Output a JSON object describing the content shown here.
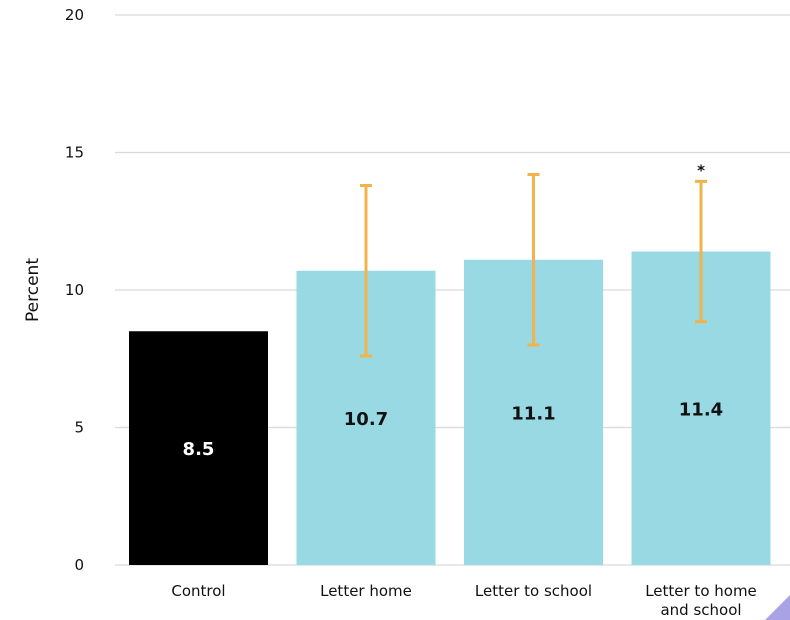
{
  "chart_data": {
    "type": "bar",
    "ylabel": "Percent",
    "ylim": [
      0,
      20
    ],
    "yticks": [
      0,
      5,
      10,
      15,
      20
    ],
    "grid": true,
    "categories": [
      [
        "Control"
      ],
      [
        "Letter home"
      ],
      [
        "Letter to school"
      ],
      [
        "Letter to home",
        "and school"
      ]
    ],
    "values": [
      8.5,
      10.7,
      11.1,
      11.4
    ],
    "value_labels": [
      "8.5",
      "10.7",
      "11.1",
      "11.4"
    ],
    "error_low": [
      null,
      7.6,
      8.0,
      8.85
    ],
    "error_high": [
      null,
      13.8,
      14.2,
      13.95
    ],
    "significance": [
      "",
      "",
      "",
      "*"
    ],
    "colors": {
      "control": "#000000",
      "treatment": "#98d9e3",
      "error_bar": "#f0b44a",
      "grid": "#d9d9d9",
      "control_label": "#ffffff",
      "treatment_label": "#111111",
      "corner_accent": "#a9a3e6"
    }
  }
}
